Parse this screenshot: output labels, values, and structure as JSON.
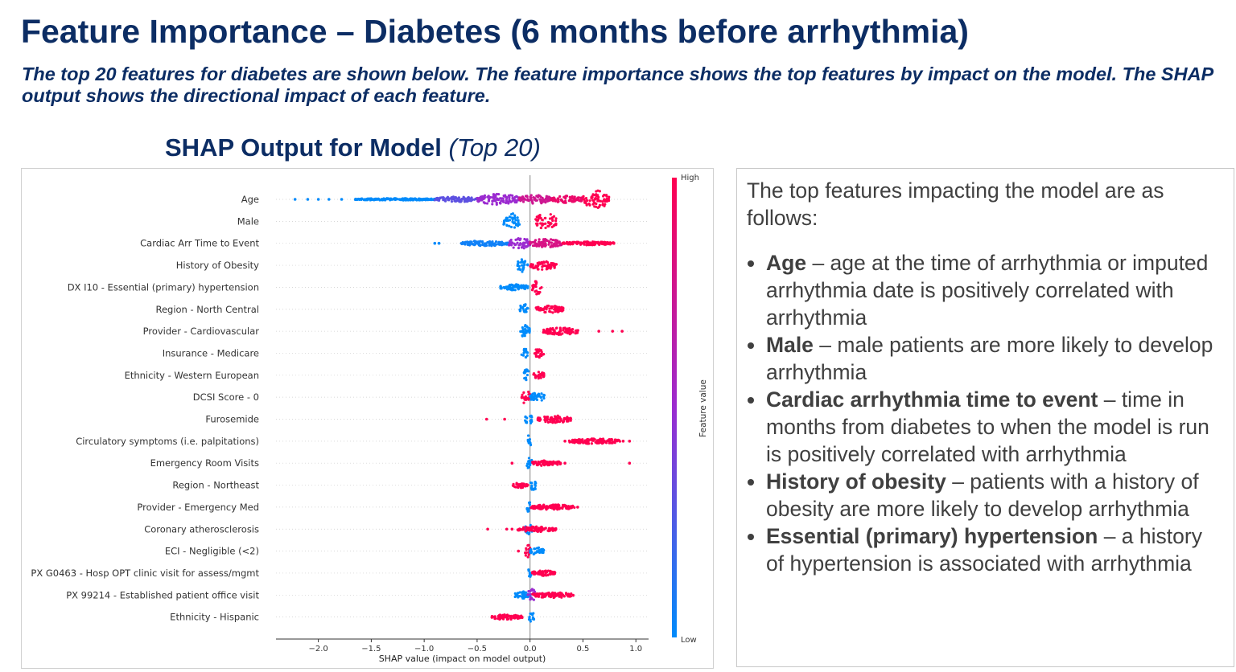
{
  "slide": {
    "title": "Feature Importance – Diabetes (6 months before arrhythmia)",
    "subtitle": "The top 20 features for diabetes are shown below. The feature importance shows the top features by impact on the model. The SHAP output shows the directional impact of each feature.",
    "chart_heading_bold": "SHAP Output for Model",
    "chart_heading_italic": "(Top 20)"
  },
  "text_panel": {
    "intro": "The top features impacting the model are as follows:",
    "bullets": [
      {
        "term": "Age",
        "text": " – age at the time of arrhythmia or imputed arrhythmia date is positively correlated with arrhythmia"
      },
      {
        "term": "Male",
        "text": " – male patients are more likely to develop arrhythmia"
      },
      {
        "term": "Cardiac arrhythmia time to event",
        "text": " – time in months from diabetes to when the model is run is positively correlated with arrhythmia"
      },
      {
        "term": "History of obesity",
        "text": " – patients with a history of obesity are more likely to develop arrhythmia"
      },
      {
        "term": "Essential (primary) hypertension",
        "text": " – a history of hypertension is associated with arrhythmia"
      }
    ]
  },
  "chart_data": {
    "type": "scatter",
    "subtype": "shap-beeswarm",
    "xlabel": "SHAP value (impact on model output)",
    "xlim": [
      -2.4,
      1.12
    ],
    "xticks": [
      -2.0,
      -1.5,
      -1.0,
      -0.5,
      0.0,
      0.5,
      1.0
    ],
    "xtick_labels": [
      "−2.0",
      "−1.5",
      "−1.0",
      "−0.5",
      "0.0",
      "0.5",
      "1.0"
    ],
    "colorbar": {
      "label": "Feature value",
      "high": "High",
      "low": "Low",
      "low_color": "#008bfb",
      "mid_color": "#9b2bd0",
      "high_color": "#ff0051"
    },
    "segment_format": "[shap_from, shap_to, feature_value_0_to_1, density_0_to_1]",
    "features": [
      {
        "name": "Age",
        "segments": [
          [
            -1.65,
            -0.9,
            0,
            0.12
          ],
          [
            -0.9,
            -0.5,
            0.3,
            0.3
          ],
          [
            -0.5,
            -0.1,
            0.5,
            0.6
          ],
          [
            -0.1,
            0.2,
            0.75,
            0.5
          ],
          [
            0.2,
            0.5,
            0.9,
            0.4
          ],
          [
            0.5,
            0.75,
            1,
            1
          ]
        ],
        "points": [
          [
            -2.22,
            0
          ],
          [
            -2.1,
            0
          ],
          [
            -2.0,
            0
          ],
          [
            -1.9,
            0
          ],
          [
            -1.78,
            0
          ]
        ]
      },
      {
        "name": "Male",
        "segments": [
          [
            -0.25,
            -0.1,
            0,
            0.9
          ],
          [
            0.05,
            0.25,
            1,
            0.9
          ]
        ],
        "points": []
      },
      {
        "name": "Cardiac Arr Time to Event",
        "segments": [
          [
            -0.65,
            -0.2,
            0.05,
            0.3
          ],
          [
            -0.2,
            0,
            0.5,
            0.65
          ],
          [
            0,
            0.3,
            0.8,
            0.5
          ],
          [
            0.3,
            0.8,
            1,
            0.2
          ]
        ],
        "points": [
          [
            -0.9,
            0
          ],
          [
            -0.86,
            0
          ]
        ]
      },
      {
        "name": "History of Obesity",
        "segments": [
          [
            -0.12,
            -0.02,
            0,
            0.8
          ],
          [
            0,
            0.25,
            1,
            0.5
          ]
        ],
        "points": []
      },
      {
        "name": "DX I10 - Essential (primary) hypertension",
        "segments": [
          [
            -0.28,
            -0.02,
            0,
            0.35
          ],
          [
            0.02,
            0.12,
            1,
            0.8
          ]
        ],
        "points": []
      },
      {
        "name": "Region - North Central",
        "segments": [
          [
            -0.1,
            -0.02,
            0,
            0.7
          ],
          [
            0.05,
            0.32,
            1,
            0.4
          ]
        ],
        "points": []
      },
      {
        "name": "Provider - Cardiovascular",
        "segments": [
          [
            -0.1,
            0,
            0,
            0.7
          ],
          [
            0.12,
            0.46,
            1,
            0.4
          ]
        ],
        "points": [
          [
            0.65,
            1
          ],
          [
            0.78,
            1
          ],
          [
            0.87,
            1
          ]
        ]
      },
      {
        "name": "Insurance - Medicare",
        "segments": [
          [
            -0.08,
            -0.02,
            0,
            0.6
          ],
          [
            0.03,
            0.13,
            1,
            0.5
          ]
        ],
        "points": []
      },
      {
        "name": "Ethnicity - Western European",
        "segments": [
          [
            -0.06,
            -0.01,
            0,
            0.7
          ],
          [
            0.03,
            0.14,
            1,
            0.4
          ]
        ],
        "points": []
      },
      {
        "name": "DCSI Score - 0",
        "segments": [
          [
            -0.08,
            0,
            1,
            0.8
          ],
          [
            0,
            0.14,
            0,
            0.5
          ]
        ],
        "points": []
      },
      {
        "name": "Furosemide",
        "segments": [
          [
            -0.05,
            0.02,
            0,
            0.6
          ],
          [
            0.07,
            0.39,
            1,
            0.4
          ]
        ],
        "points": [
          [
            -0.41,
            1
          ],
          [
            -0.24,
            1
          ]
        ]
      },
      {
        "name": "Circulatory symptoms (i.e. palpitations)",
        "segments": [
          [
            -0.03,
            0.01,
            0,
            0.7
          ],
          [
            0.37,
            0.85,
            1,
            0.3
          ]
        ],
        "points": [
          [
            0.33,
            1
          ],
          [
            0.88,
            1
          ],
          [
            0.94,
            1
          ]
        ]
      },
      {
        "name": "Emergency Room Visits",
        "segments": [
          [
            -0.03,
            0.02,
            0,
            0.7
          ],
          [
            0.02,
            0.29,
            1,
            0.3
          ]
        ],
        "points": [
          [
            -0.17,
            1
          ],
          [
            0.33,
            1
          ],
          [
            0.94,
            1
          ]
        ]
      },
      {
        "name": "Region - Northeast",
        "segments": [
          [
            -0.16,
            -0.02,
            1,
            0.3
          ],
          [
            0,
            0.06,
            0,
            0.6
          ]
        ],
        "points": []
      },
      {
        "name": "Provider - Emergency Med",
        "segments": [
          [
            -0.03,
            0.01,
            0,
            0.6
          ],
          [
            0.01,
            0.42,
            1,
            0.3
          ]
        ],
        "points": [
          [
            0.45,
            1
          ]
        ]
      },
      {
        "name": "Coronary atherosclerosis",
        "segments": [
          [
            -0.05,
            0.02,
            0,
            0.6
          ],
          [
            -0.12,
            0.25,
            1,
            0.3
          ]
        ],
        "points": [
          [
            -0.4,
            1
          ],
          [
            -0.22,
            1
          ],
          [
            -0.17,
            1
          ]
        ]
      },
      {
        "name": "ECI - Negligible (<2)",
        "segments": [
          [
            -0.05,
            0.01,
            1,
            0.7
          ],
          [
            0,
            0.13,
            0,
            0.4
          ]
        ],
        "points": [
          [
            -0.11,
            1
          ]
        ]
      },
      {
        "name": "PX G0463 - Hosp OPT clinic visit for assess/mgmt",
        "segments": [
          [
            -0.02,
            0.01,
            0,
            0.7
          ],
          [
            0.02,
            0.24,
            1,
            0.3
          ]
        ],
        "points": []
      },
      {
        "name": "PX 99214 - Established patient office visit",
        "segments": [
          [
            -0.15,
            0.01,
            0,
            0.4
          ],
          [
            -0.02,
            0.05,
            0.5,
            0.8
          ],
          [
            0.02,
            0.41,
            1,
            0.3
          ]
        ],
        "points": []
      },
      {
        "name": "Ethnicity - Hispanic",
        "segments": [
          [
            -0.37,
            -0.07,
            1,
            0.3
          ],
          [
            -0.01,
            0.04,
            0,
            0.6
          ]
        ],
        "points": []
      }
    ]
  }
}
